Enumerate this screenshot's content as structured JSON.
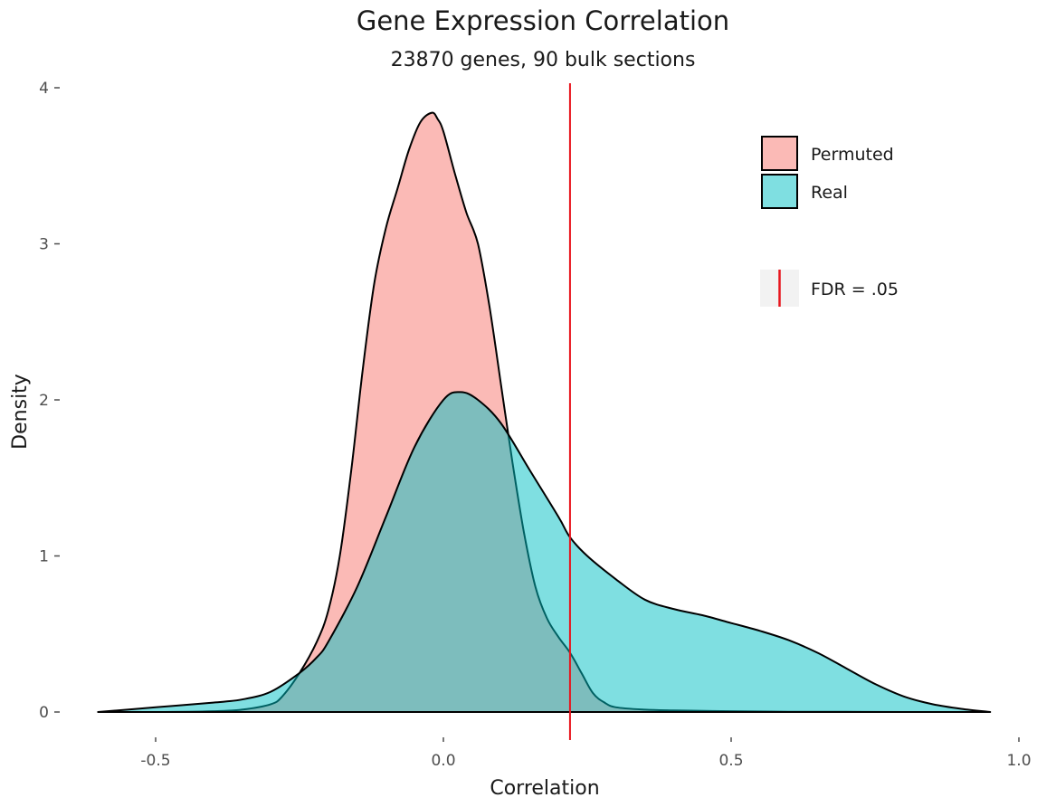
{
  "chart_data": {
    "type": "area",
    "title": "Gene Expression Correlation",
    "subtitle": "23870 genes, 90 bulk sections",
    "xlabel": "Correlation",
    "ylabel": "Density",
    "xlim": [
      -0.6,
      0.95
    ],
    "ylim": [
      0,
      4
    ],
    "x_ticks": [
      -0.5,
      0.0,
      0.5,
      1.0
    ],
    "x_tick_labels": [
      "-0.5",
      "0.0",
      "0.5",
      "1.0"
    ],
    "y_ticks": [
      0,
      1,
      2,
      3,
      4
    ],
    "y_tick_labels": [
      "0",
      "1",
      "2",
      "3",
      "4"
    ],
    "grid": false,
    "legend_position": "top-right",
    "series": [
      {
        "name": "Permuted",
        "color": "#f8766d",
        "x": [
          -0.6,
          -0.5,
          -0.4,
          -0.35,
          -0.3,
          -0.28,
          -0.25,
          -0.22,
          -0.2,
          -0.18,
          -0.16,
          -0.14,
          -0.12,
          -0.1,
          -0.08,
          -0.06,
          -0.04,
          -0.02,
          -0.01,
          0.0,
          0.02,
          0.04,
          0.06,
          0.08,
          0.1,
          0.12,
          0.14,
          0.16,
          0.18,
          0.2,
          0.22,
          0.24,
          0.26,
          0.28,
          0.3,
          0.35,
          0.4,
          0.5,
          0.6,
          0.7,
          0.8,
          0.95
        ],
        "y": [
          0,
          0,
          0.005,
          0.015,
          0.05,
          0.1,
          0.25,
          0.45,
          0.65,
          1.0,
          1.55,
          2.2,
          2.75,
          3.1,
          3.35,
          3.6,
          3.78,
          3.84,
          3.8,
          3.72,
          3.45,
          3.2,
          3.0,
          2.6,
          2.1,
          1.6,
          1.15,
          0.8,
          0.6,
          0.48,
          0.38,
          0.25,
          0.12,
          0.06,
          0.03,
          0.015,
          0.01,
          0.005,
          0.002,
          0.001,
          0,
          0
        ]
      },
      {
        "name": "Real",
        "color": "#00bfc4",
        "x": [
          -0.6,
          -0.5,
          -0.4,
          -0.35,
          -0.3,
          -0.25,
          -0.22,
          -0.2,
          -0.15,
          -0.1,
          -0.05,
          0.0,
          0.03,
          0.06,
          0.1,
          0.15,
          0.2,
          0.22,
          0.25,
          0.3,
          0.35,
          0.4,
          0.45,
          0.5,
          0.55,
          0.6,
          0.65,
          0.7,
          0.75,
          0.8,
          0.85,
          0.9,
          0.95
        ],
        "y": [
          0,
          0.03,
          0.06,
          0.08,
          0.13,
          0.25,
          0.35,
          0.45,
          0.8,
          1.25,
          1.7,
          2.0,
          2.05,
          2.0,
          1.85,
          1.55,
          1.25,
          1.12,
          1.0,
          0.85,
          0.72,
          0.66,
          0.62,
          0.57,
          0.52,
          0.46,
          0.38,
          0.28,
          0.18,
          0.1,
          0.05,
          0.02,
          0
        ]
      }
    ],
    "fdr_line": {
      "x": 0.22,
      "label": "FDR = .05",
      "color": "#e8141c"
    }
  }
}
